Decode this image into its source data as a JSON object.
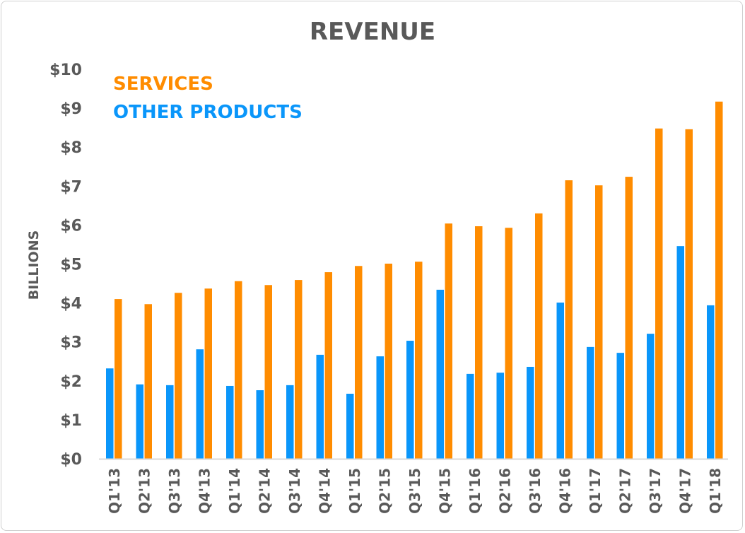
{
  "chart_data": {
    "type": "bar",
    "title": "REVENUE",
    "ylabel": "BILLIONS",
    "xlabel": "",
    "ylim": [
      0,
      10
    ],
    "yticks": [
      "$0",
      "$1",
      "$2",
      "$3",
      "$4",
      "$5",
      "$6",
      "$7",
      "$8",
      "$9",
      "$10"
    ],
    "grid": false,
    "legend_position": "top-left",
    "categories": [
      "Q1'13",
      "Q2'13",
      "Q3'13",
      "Q4'13",
      "Q1'14",
      "Q2'14",
      "Q3'14",
      "Q4'14",
      "Q1'15",
      "Q2'15",
      "Q3'15",
      "Q4'15",
      "Q1'16",
      "Q2'16",
      "Q3'16",
      "Q4'16",
      "Q1'17",
      "Q2'17",
      "Q3'17",
      "Q4'17",
      "Q1'18"
    ],
    "series": [
      {
        "name": "OTHER PRODUCTS",
        "color": "#0A96FA",
        "values": [
          2.32,
          1.91,
          1.89,
          2.81,
          1.87,
          1.76,
          1.89,
          2.67,
          1.67,
          2.63,
          3.03,
          4.34,
          2.18,
          2.21,
          2.36,
          4.01,
          2.87,
          2.72,
          3.21,
          5.46,
          3.94
        ]
      },
      {
        "name": "SERVICES",
        "color": "#FF8C00",
        "values": [
          4.1,
          3.97,
          4.26,
          4.37,
          4.56,
          4.46,
          4.59,
          4.79,
          4.95,
          5.01,
          5.06,
          6.04,
          5.97,
          5.93,
          6.3,
          7.15,
          7.02,
          7.24,
          8.48,
          8.46,
          9.17
        ]
      }
    ]
  }
}
